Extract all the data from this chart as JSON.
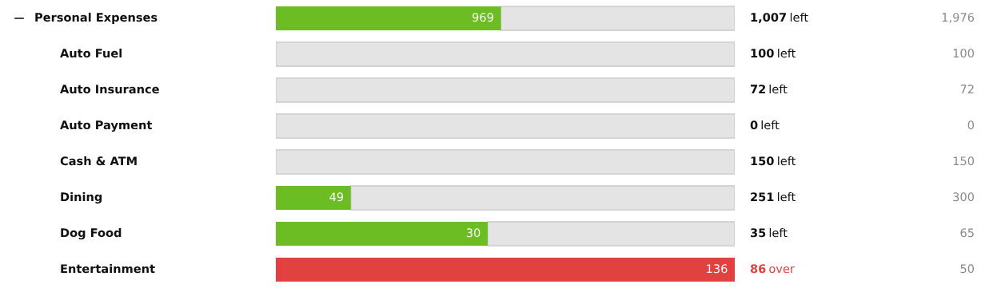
{
  "chart_data": {
    "type": "other",
    "categories": [
      "Personal Expenses",
      "Auto Fuel",
      "Auto Insurance",
      "Auto Payment",
      "Cash & ATM",
      "Dining",
      "Dog Food",
      "Entertainment"
    ],
    "series": [
      {
        "colors": [
          "#6cbd23",
          "#6cbd23",
          "#6cbd23",
          "#6cbd23",
          "#6cbd23",
          "#6cbd23",
          "#6cbd23",
          "#e2423f"
        ],
        "values": [
          969,
          null,
          null,
          null,
          null,
          49,
          30,
          136
        ],
        "value_labels": [
          "969",
          null,
          null,
          null,
          null,
          "49",
          "30",
          "136"
        ]
      },
      {
        "colors": [
          "#111111",
          "#111111",
          "#111111",
          "#111111",
          "#111111",
          "#111111",
          "#111111",
          "#e2423f"
        ],
        "values": [
          1007,
          100,
          72,
          0,
          150,
          251,
          35,
          86
        ],
        "value_labels": [
          "1,007 left",
          "100 left",
          "72 left",
          "0 left",
          "150 left",
          "251 left",
          "35 left",
          "86 over"
        ]
      },
      {
        "color": "#8a8a8a",
        "values": [
          1976,
          100,
          72,
          0,
          150,
          300,
          65,
          50
        ],
        "value_labels": [
          "1,976",
          "100",
          "72",
          "0",
          "150",
          "300",
          "65",
          "50"
        ]
      }
    ]
  }
}
